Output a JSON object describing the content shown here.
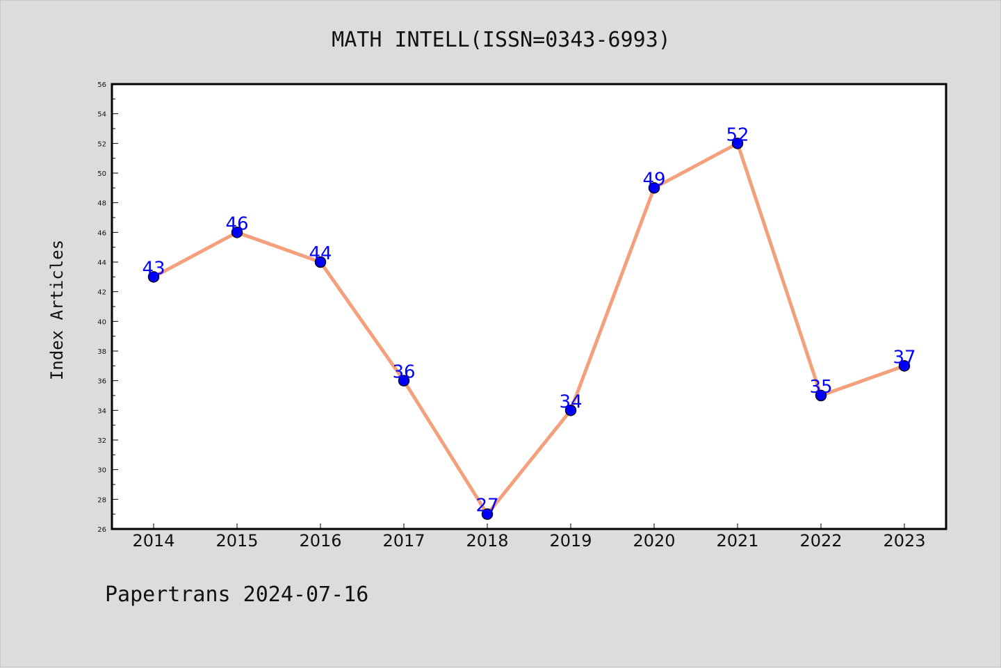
{
  "chart_data": {
    "type": "line",
    "title": "MATH INTELL(ISSN=0343-6993)",
    "xlabel": "",
    "ylabel": "Index Articles",
    "footer": "Papertrans 2024-07-16",
    "categories": [
      "2014",
      "2015",
      "2016",
      "2017",
      "2018",
      "2019",
      "2020",
      "2021",
      "2022",
      "2023"
    ],
    "values": [
      43,
      46,
      44,
      36,
      27,
      34,
      49,
      52,
      35,
      37
    ],
    "ylim": [
      26,
      56
    ],
    "yticks": [
      26,
      28,
      30,
      32,
      34,
      36,
      38,
      40,
      42,
      44,
      46,
      48,
      50,
      52,
      54,
      56
    ],
    "grid": false,
    "colors": {
      "line": "#f4a07c",
      "marker": "#0000ff",
      "data_label": "#0000ff",
      "background": "#dcdcdc",
      "plot_background": "#ffffff"
    }
  }
}
